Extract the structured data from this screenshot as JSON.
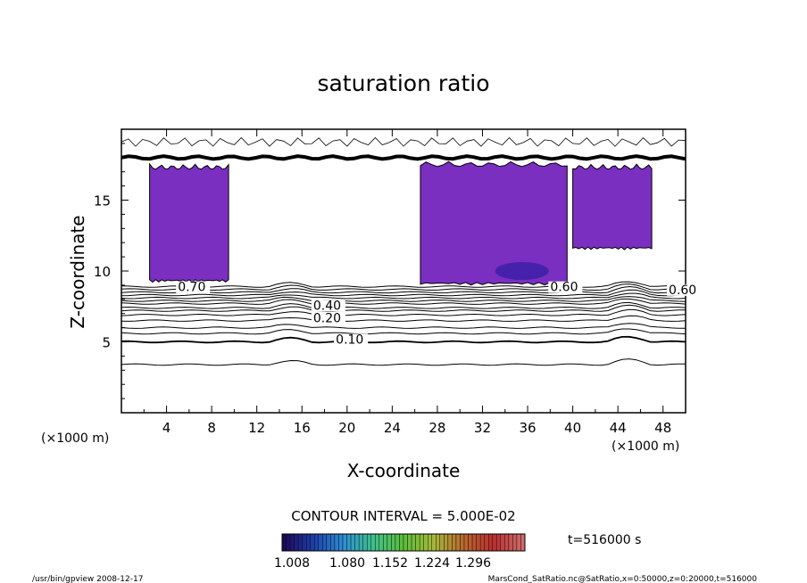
{
  "chart_data": {
    "type": "contour",
    "title": "saturation ratio",
    "xlabel": "X-coordinate",
    "ylabel": "Z-coordinate",
    "xunit_left": "(×1000 m)",
    "xunit_right": "(×1000 m)",
    "xlim": [
      0,
      50
    ],
    "ylim": [
      0,
      20
    ],
    "x_ticks": [
      4,
      8,
      12,
      16,
      20,
      24,
      28,
      32,
      36,
      40,
      44,
      48
    ],
    "y_ticks": [
      5,
      10,
      15
    ],
    "contour_interval_label": "CONTOUR INTERVAL = 5.000E-02",
    "contour_labels": [
      {
        "text": "0.10",
        "x": 19,
        "z": 5.0
      },
      {
        "text": "0.20",
        "x": 17,
        "z": 6.5
      },
      {
        "text": "0.40",
        "x": 17,
        "z": 7.4
      },
      {
        "text": "0.70",
        "x": 5,
        "z": 8.7
      },
      {
        "text": "0.60",
        "x": 38,
        "z": 8.7
      },
      {
        "text": "0.60",
        "x": 48.5,
        "z": 8.5
      }
    ],
    "shaded_regions": [
      {
        "x_range": [
          2.5,
          9.5
        ],
        "z_range": [
          9.2,
          17.8
        ]
      },
      {
        "x_range": [
          26.5,
          39.5
        ],
        "z_range": [
          9.0,
          18.0
        ]
      },
      {
        "x_range": [
          40,
          47
        ],
        "z_range": [
          11.5,
          17.8
        ]
      }
    ],
    "colorbar": {
      "ticks": [
        "1.008",
        "1.080",
        "1.152",
        "1.224",
        "1.296"
      ],
      "colors": [
        "#1b0a5c",
        "#1f3fa8",
        "#2e8fd6",
        "#3fbf8a",
        "#5cbf3a",
        "#a6b83a",
        "#b86a2e",
        "#b82e2e",
        "#d06a6a"
      ]
    },
    "time_label": "t=516000 s"
  },
  "footer": {
    "left": "/usr/bin/gpview   2008-12-17",
    "right": "MarsCond_SatRatio.nc@SatRatio,x=0:50000,z=0:20000,t=516000"
  }
}
